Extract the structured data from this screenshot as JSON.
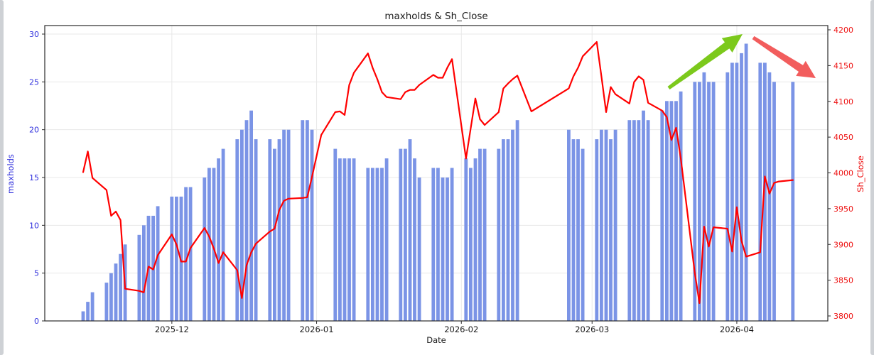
{
  "chart_data": {
    "type": "combo",
    "title": "maxholds & Sh_Close",
    "xlabel": "Date",
    "ylabel_left": "maxholds",
    "ylabel_right": "Sh_Close",
    "grid": true,
    "x_ticks": [
      {
        "label": "2025-12",
        "date": "2025-12-01"
      },
      {
        "label": "2026-01",
        "date": "2026-01-01"
      },
      {
        "label": "2026-02",
        "date": "2026-02-01"
      },
      {
        "label": "2026-03",
        "date": "2026-03-01"
      },
      {
        "label": "2026-04",
        "date": "2026-04-01"
      }
    ],
    "y_left": {
      "ticks": [
        0,
        5,
        10,
        15,
        20,
        25,
        30
      ],
      "lim": [
        0,
        30.9
      ],
      "color": "#3030dd"
    },
    "y_right": {
      "ticks": [
        3800,
        3850,
        3900,
        3950,
        4000,
        4050,
        4100,
        4150,
        4200
      ],
      "lim": [
        3793,
        4207
      ],
      "color": "#ee1414"
    },
    "series": [
      {
        "name": "maxholds",
        "type": "bar",
        "axis": "left",
        "color": "#7b94e6",
        "points": [
          [
            "2025-11-12",
            1
          ],
          [
            "2025-11-13",
            2
          ],
          [
            "2025-11-14",
            3
          ],
          [
            "2025-11-17",
            4
          ],
          [
            "2025-11-18",
            5
          ],
          [
            "2025-11-19",
            6
          ],
          [
            "2025-11-20",
            7
          ],
          [
            "2025-11-21",
            8
          ],
          [
            "2025-11-24",
            9
          ],
          [
            "2025-11-25",
            10
          ],
          [
            "2025-11-26",
            11
          ],
          [
            "2025-11-27",
            11
          ],
          [
            "2025-11-28",
            12
          ],
          [
            "2025-12-01",
            13
          ],
          [
            "2025-12-02",
            13
          ],
          [
            "2025-12-03",
            13
          ],
          [
            "2025-12-04",
            14
          ],
          [
            "2025-12-05",
            14
          ],
          [
            "2025-12-08",
            15
          ],
          [
            "2025-12-09",
            16
          ],
          [
            "2025-12-10",
            16
          ],
          [
            "2025-12-11",
            17
          ],
          [
            "2025-12-12",
            18
          ],
          [
            "2025-12-15",
            19
          ],
          [
            "2025-12-16",
            20
          ],
          [
            "2025-12-17",
            21
          ],
          [
            "2025-12-18",
            22
          ],
          [
            "2025-12-19",
            19
          ],
          [
            "2025-12-22",
            19
          ],
          [
            "2025-12-23",
            18
          ],
          [
            "2025-12-24",
            19
          ],
          [
            "2025-12-25",
            20
          ],
          [
            "2025-12-26",
            20
          ],
          [
            "2025-12-29",
            21
          ],
          [
            "2025-12-30",
            21
          ],
          [
            "2025-12-31",
            20
          ],
          [
            "2026-01-05",
            18
          ],
          [
            "2026-01-06",
            17
          ],
          [
            "2026-01-07",
            17
          ],
          [
            "2026-01-08",
            17
          ],
          [
            "2026-01-09",
            17
          ],
          [
            "2026-01-12",
            16
          ],
          [
            "2026-01-13",
            16
          ],
          [
            "2026-01-14",
            16
          ],
          [
            "2026-01-15",
            16
          ],
          [
            "2026-01-16",
            17
          ],
          [
            "2026-01-19",
            18
          ],
          [
            "2026-01-20",
            18
          ],
          [
            "2026-01-21",
            19
          ],
          [
            "2026-01-22",
            17
          ],
          [
            "2026-01-23",
            15
          ],
          [
            "2026-01-26",
            16
          ],
          [
            "2026-01-27",
            16
          ],
          [
            "2026-01-28",
            15
          ],
          [
            "2026-01-29",
            15
          ],
          [
            "2026-01-30",
            16
          ],
          [
            "2026-02-02",
            17
          ],
          [
            "2026-02-03",
            16
          ],
          [
            "2026-02-04",
            17
          ],
          [
            "2026-02-05",
            18
          ],
          [
            "2026-02-06",
            18
          ],
          [
            "2026-02-09",
            18
          ],
          [
            "2026-02-10",
            19
          ],
          [
            "2026-02-11",
            19
          ],
          [
            "2026-02-12",
            20
          ],
          [
            "2026-02-13",
            21
          ],
          [
            "2026-02-24",
            20
          ],
          [
            "2026-02-25",
            19
          ],
          [
            "2026-02-26",
            19
          ],
          [
            "2026-02-27",
            18
          ],
          [
            "2026-03-02",
            19
          ],
          [
            "2026-03-03",
            20
          ],
          [
            "2026-03-04",
            20
          ],
          [
            "2026-03-05",
            19
          ],
          [
            "2026-03-06",
            20
          ],
          [
            "2026-03-09",
            21
          ],
          [
            "2026-03-10",
            21
          ],
          [
            "2026-03-11",
            21
          ],
          [
            "2026-03-12",
            22
          ],
          [
            "2026-03-13",
            21
          ],
          [
            "2026-03-16",
            22
          ],
          [
            "2026-03-17",
            23
          ],
          [
            "2026-03-18",
            23
          ],
          [
            "2026-03-19",
            23
          ],
          [
            "2026-03-20",
            24
          ],
          [
            "2026-03-23",
            25
          ],
          [
            "2026-03-24",
            25
          ],
          [
            "2026-03-25",
            26
          ],
          [
            "2026-03-26",
            25
          ],
          [
            "2026-03-27",
            25
          ],
          [
            "2026-03-30",
            26
          ],
          [
            "2026-03-31",
            27
          ],
          [
            "2026-04-01",
            27
          ],
          [
            "2026-04-02",
            28
          ],
          [
            "2026-04-03",
            29
          ],
          [
            "2026-04-06",
            27
          ],
          [
            "2026-04-07",
            27
          ],
          [
            "2026-04-08",
            26
          ],
          [
            "2026-04-09",
            25
          ],
          [
            "2026-04-13",
            25
          ]
        ]
      },
      {
        "name": "Sh_Close",
        "type": "line",
        "axis": "right",
        "color": "#ff0000",
        "points": [
          [
            "2025-11-12",
            4001
          ],
          [
            "2025-11-13",
            4030
          ],
          [
            "2025-11-14",
            3993
          ],
          [
            "2025-11-17",
            3976
          ],
          [
            "2025-11-18",
            3940
          ],
          [
            "2025-11-19",
            3946
          ],
          [
            "2025-11-20",
            3934
          ],
          [
            "2025-11-21",
            3838
          ],
          [
            "2025-11-24",
            3835
          ],
          [
            "2025-11-25",
            3833
          ],
          [
            "2025-11-26",
            3869
          ],
          [
            "2025-11-27",
            3865
          ],
          [
            "2025-11-28",
            3885
          ],
          [
            "2025-12-01",
            3914
          ],
          [
            "2025-12-02",
            3900
          ],
          [
            "2025-12-03",
            3876
          ],
          [
            "2025-12-04",
            3876
          ],
          [
            "2025-12-05",
            3895
          ],
          [
            "2025-12-08",
            3923
          ],
          [
            "2025-12-09",
            3911
          ],
          [
            "2025-12-10",
            3894
          ],
          [
            "2025-12-11",
            3874
          ],
          [
            "2025-12-12",
            3889
          ],
          [
            "2025-12-15",
            3864
          ],
          [
            "2025-12-16",
            3825
          ],
          [
            "2025-12-17",
            3871
          ],
          [
            "2025-12-18",
            3889
          ],
          [
            "2025-12-19",
            3901
          ],
          [
            "2025-12-22",
            3918
          ],
          [
            "2025-12-23",
            3922
          ],
          [
            "2025-12-24",
            3948
          ],
          [
            "2025-12-25",
            3961
          ],
          [
            "2025-12-26",
            3964
          ],
          [
            "2025-12-29",
            3965
          ],
          [
            "2025-12-30",
            3966
          ],
          [
            "2025-12-31",
            3994
          ],
          [
            "2026-01-02",
            4053
          ],
          [
            "2026-01-05",
            4085
          ],
          [
            "2026-01-06",
            4086
          ],
          [
            "2026-01-07",
            4081
          ],
          [
            "2026-01-08",
            4123
          ],
          [
            "2026-01-09",
            4140
          ],
          [
            "2026-01-12",
            4167
          ],
          [
            "2026-01-13",
            4147
          ],
          [
            "2026-01-14",
            4131
          ],
          [
            "2026-01-15",
            4113
          ],
          [
            "2026-01-16",
            4106
          ],
          [
            "2026-01-19",
            4103
          ],
          [
            "2026-01-20",
            4113
          ],
          [
            "2026-01-21",
            4116
          ],
          [
            "2026-01-22",
            4116
          ],
          [
            "2026-01-23",
            4123
          ],
          [
            "2026-01-26",
            4137
          ],
          [
            "2026-01-27",
            4133
          ],
          [
            "2026-01-28",
            4133
          ],
          [
            "2026-01-29",
            4147
          ],
          [
            "2026-01-30",
            4159
          ],
          [
            "2026-02-02",
            4020
          ],
          [
            "2026-02-03",
            4062
          ],
          [
            "2026-02-04",
            4104
          ],
          [
            "2026-02-05",
            4075
          ],
          [
            "2026-02-06",
            4067
          ],
          [
            "2026-02-09",
            4085
          ],
          [
            "2026-02-10",
            4118
          ],
          [
            "2026-02-11",
            4125
          ],
          [
            "2026-02-12",
            4131
          ],
          [
            "2026-02-13",
            4136
          ],
          [
            "2026-02-16",
            4086
          ],
          [
            "2026-02-24",
            4118
          ],
          [
            "2026-02-25",
            4135
          ],
          [
            "2026-02-26",
            4147
          ],
          [
            "2026-02-27",
            4163
          ],
          [
            "2026-03-02",
            4183
          ],
          [
            "2026-03-03",
            4135
          ],
          [
            "2026-03-04",
            4085
          ],
          [
            "2026-03-05",
            4120
          ],
          [
            "2026-03-06",
            4110
          ],
          [
            "2026-03-09",
            4097
          ],
          [
            "2026-03-10",
            4127
          ],
          [
            "2026-03-11",
            4135
          ],
          [
            "2026-03-12",
            4130
          ],
          [
            "2026-03-13",
            4098
          ],
          [
            "2026-03-16",
            4087
          ],
          [
            "2026-03-17",
            4078
          ],
          [
            "2026-03-18",
            4046
          ],
          [
            "2026-03-19",
            4063
          ],
          [
            "2026-03-20",
            4020
          ],
          [
            "2026-03-23",
            3860
          ],
          [
            "2026-03-24",
            3818
          ],
          [
            "2026-03-25",
            3925
          ],
          [
            "2026-03-26",
            3897
          ],
          [
            "2026-03-27",
            3924
          ],
          [
            "2026-03-30",
            3922
          ],
          [
            "2026-03-31",
            3890
          ],
          [
            "2026-04-01",
            3952
          ],
          [
            "2026-04-02",
            3905
          ],
          [
            "2026-04-03",
            3883
          ],
          [
            "2026-04-06",
            3889
          ],
          [
            "2026-04-07",
            3995
          ],
          [
            "2026-04-08",
            3971
          ],
          [
            "2026-04-09",
            3986
          ],
          [
            "2026-04-10",
            3988
          ],
          [
            "2026-04-13",
            3990
          ]
        ]
      }
    ],
    "annotations": [
      {
        "name": "up-trend-arrow",
        "color": "#7cc91c",
        "from": [
          941,
          124
        ],
        "to": [
          1045,
          48
        ],
        "tail_width": 5,
        "neck_width": 11,
        "head_width": 25,
        "head_len": 27
      },
      {
        "name": "down-trend-arrow",
        "color": "#f25d5d",
        "from": [
          1060,
          53
        ],
        "to": [
          1148,
          110
        ],
        "tail_width": 5,
        "neck_width": 11,
        "head_width": 25,
        "head_len": 25
      }
    ],
    "style": {
      "grid_color": "#e8e8e8",
      "spine_color": "#2b2b2b",
      "tick_label_color": "#1a1a1a"
    }
  }
}
